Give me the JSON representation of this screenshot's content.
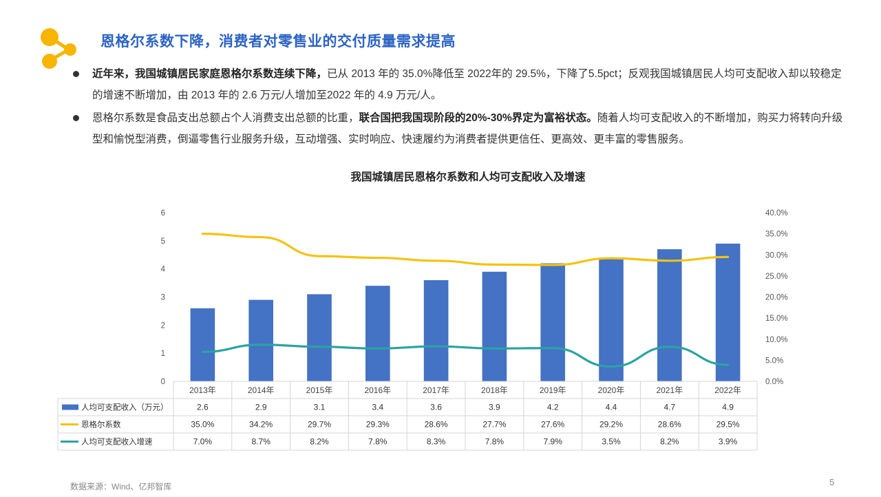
{
  "title": "恩格尔系数下降，消费者对零售业的交付质量需求提高",
  "bullets": [
    {
      "bold": "近年来，我国城镇居民家庭恩格尔系数连续下降，",
      "text": "已从 2013 年的 35.0%降低至 2022年的 29.5%，下降了5.5pct；反观我国城镇居民人均可支配收入却以较稳定的增速不断增加，由 2013 年的 2.6 万元/人增加至2022 年的 4.9 万元/人。"
    },
    {
      "text_before": "恩格尔系数是食品支出总额占个人消费支出总额的比重，",
      "bold": "联合国把我国现阶段的20%-30%界定为富裕状态。",
      "text_after": "随着人均可支配收入的不断增加，购买力将转向升级型和愉悦型消费，倒逼零售行业服务升级，互动增强、实时响应、快速履约为消费者提供更信任、更高效、更丰富的零售服务。"
    }
  ],
  "source": "数据来源：Wind、亿邦智库",
  "page_number": "5",
  "colors": {
    "title": "#2b63c4",
    "bar": "#4472c4",
    "engel_line": "#f5c211",
    "growth_line": "#2aa3a1",
    "logo": "#f7b500"
  },
  "chart_data": {
    "type": "bar",
    "title": "我国城镇居民恩格尔系数和人均可支配收入及增速",
    "categories": [
      "2013年",
      "2014年",
      "2015年",
      "2016年",
      "2017年",
      "2018年",
      "2019年",
      "2020年",
      "2021年",
      "2022年"
    ],
    "left_axis": {
      "ticks": [
        "0",
        "1",
        "2",
        "3",
        "4",
        "5",
        "6"
      ],
      "ylim": [
        0,
        6
      ]
    },
    "right_axis": {
      "ticks": [
        "0.0%",
        "5.0%",
        "10.0%",
        "15.0%",
        "20.0%",
        "25.0%",
        "30.0%",
        "35.0%",
        "40.0%"
      ],
      "ylim": [
        0,
        40
      ]
    },
    "series": [
      {
        "name": "人均可支配收入（万元）",
        "type": "bar",
        "axis": "left",
        "values": [
          2.6,
          2.9,
          3.1,
          3.4,
          3.6,
          3.9,
          4.2,
          4.4,
          4.7,
          4.9
        ],
        "labels": [
          "2.6",
          "2.9",
          "3.1",
          "3.4",
          "3.6",
          "3.9",
          "4.2",
          "4.4",
          "4.7",
          "4.9"
        ]
      },
      {
        "name": "恩格尔系数",
        "type": "line",
        "axis": "right",
        "values": [
          35.0,
          34.2,
          29.7,
          29.3,
          28.6,
          27.7,
          27.6,
          29.2,
          28.6,
          29.5
        ],
        "labels": [
          "35.0%",
          "34.2%",
          "29.7%",
          "29.3%",
          "28.6%",
          "27.7%",
          "27.6%",
          "29.2%",
          "28.6%",
          "29.5%"
        ]
      },
      {
        "name": "人均可支配收入增速",
        "type": "line",
        "axis": "right",
        "values": [
          7.0,
          8.7,
          8.2,
          7.8,
          8.3,
          7.8,
          7.9,
          3.5,
          8.2,
          3.9
        ],
        "labels": [
          "7.0%",
          "8.7%",
          "8.2%",
          "7.8%",
          "8.3%",
          "7.8%",
          "7.9%",
          "3.5%",
          "8.2%",
          "3.9%"
        ]
      }
    ],
    "grid": false,
    "legend": "data-table"
  }
}
